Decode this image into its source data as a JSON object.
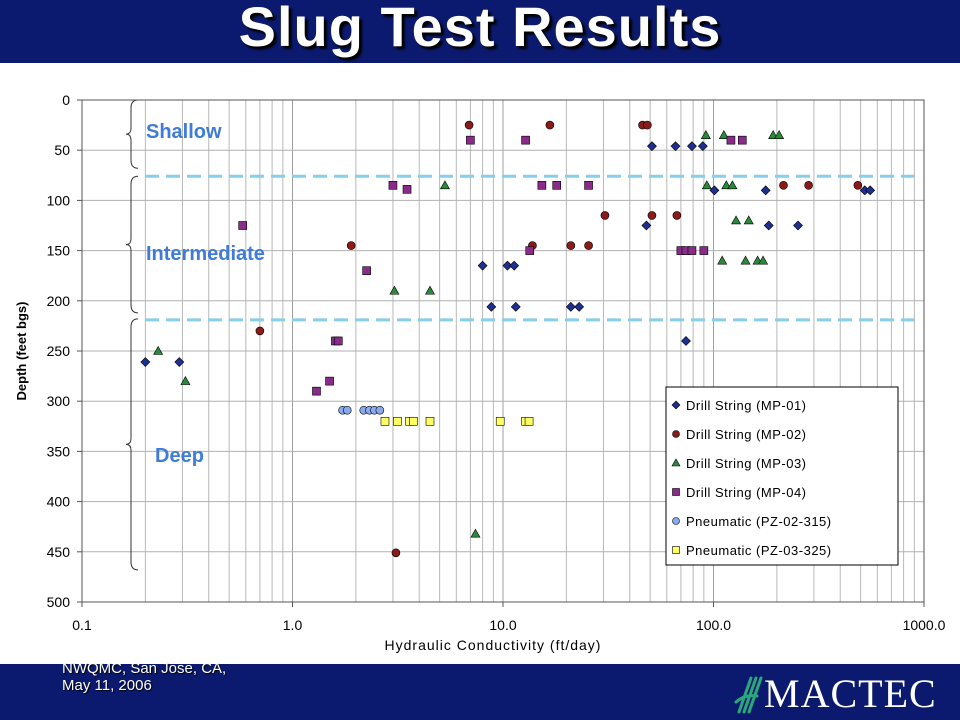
{
  "slide": {
    "title": "Slug Test Results",
    "footer_line1": "NWQMC, San Jose, CA,",
    "footer_line2": "May 11, 2006",
    "logo_text": "MACTEC",
    "colors": {
      "banner": "#0b1a6e",
      "zone_label": "#3f7bd8",
      "zone_divider": "#87ceeb"
    }
  },
  "chart_data": {
    "type": "scatter",
    "xlabel": "Hydraulic Conductivity (ft/day)",
    "ylabel": "Depth (feet bgs)",
    "x_scale": "log",
    "xlim": [
      0.1,
      1000
    ],
    "ylim": [
      0,
      500
    ],
    "y_inverted": true,
    "x_ticks": [
      0.1,
      1,
      10,
      100,
      1000
    ],
    "x_tick_labels": [
      "0.1",
      "1.0",
      "10.0",
      "100.0",
      "1000.0"
    ],
    "y_ticks": [
      0,
      50,
      100,
      150,
      200,
      250,
      300,
      350,
      400,
      450,
      500
    ],
    "grid": true,
    "legend_position": "bottom-right",
    "zones": [
      {
        "label": "Shallow",
        "range": [
          0,
          68
        ]
      },
      {
        "label": "Intermediate",
        "range": [
          76,
          212
        ]
      },
      {
        "label": "Deep",
        "range": [
          218,
          468
        ]
      }
    ],
    "zone_dividers": [
      76,
      219
    ],
    "series": [
      {
        "name": "Drill String (MP-01)",
        "marker": "diamond",
        "color": "#1f2f8f",
        "points": [
          [
            0.2,
            261
          ],
          [
            0.29,
            261
          ],
          [
            8,
            165
          ],
          [
            8.8,
            206
          ],
          [
            10.5,
            165
          ],
          [
            11.3,
            165
          ],
          [
            11.5,
            206
          ],
          [
            21,
            206
          ],
          [
            23,
            206
          ],
          [
            48,
            125
          ],
          [
            51,
            46
          ],
          [
            66,
            46
          ],
          [
            74,
            240
          ],
          [
            79,
            46
          ],
          [
            89,
            46
          ],
          [
            101,
            90
          ],
          [
            177,
            90
          ],
          [
            183,
            125
          ],
          [
            252,
            125
          ],
          [
            523,
            90
          ],
          [
            555,
            90
          ]
        ]
      },
      {
        "name": "Drill String (MP-02)",
        "marker": "circle",
        "color": "#8b1a1a",
        "points": [
          [
            0.7,
            230
          ],
          [
            1.9,
            145
          ],
          [
            3.1,
            451
          ],
          [
            6.9,
            25
          ],
          [
            13.8,
            145
          ],
          [
            16.7,
            25
          ],
          [
            21,
            145
          ],
          [
            25.5,
            145
          ],
          [
            30.5,
            115
          ],
          [
            46,
            25
          ],
          [
            48.5,
            25
          ],
          [
            51,
            115
          ],
          [
            67,
            115
          ],
          [
            215,
            85
          ],
          [
            283,
            85
          ],
          [
            485,
            85
          ]
        ]
      },
      {
        "name": "Drill String (MP-03)",
        "marker": "triangle",
        "color": "#2a8a3a",
        "points": [
          [
            0.23,
            250
          ],
          [
            0.31,
            280
          ],
          [
            3.05,
            190
          ],
          [
            4.5,
            190
          ],
          [
            5.3,
            85
          ],
          [
            7.4,
            432
          ],
          [
            92,
            35
          ],
          [
            93,
            85
          ],
          [
            110,
            160
          ],
          [
            112,
            35
          ],
          [
            115,
            85
          ],
          [
            123,
            85
          ],
          [
            128,
            120
          ],
          [
            142,
            160
          ],
          [
            147,
            120
          ],
          [
            162,
            160
          ],
          [
            172,
            160
          ],
          [
            192,
            35
          ],
          [
            205,
            35
          ]
        ]
      },
      {
        "name": "Drill String (MP-04)",
        "marker": "square",
        "color": "#8a2a8a",
        "points": [
          [
            0.58,
            125
          ],
          [
            1.3,
            290
          ],
          [
            1.5,
            280
          ],
          [
            1.6,
            240
          ],
          [
            1.65,
            240
          ],
          [
            2.25,
            170
          ],
          [
            3,
            85
          ],
          [
            3.5,
            89
          ],
          [
            7,
            40
          ],
          [
            12.8,
            40
          ],
          [
            13.4,
            150
          ],
          [
            15.3,
            85
          ],
          [
            18,
            85
          ],
          [
            25.5,
            85
          ],
          [
            70,
            150
          ],
          [
            74,
            150
          ],
          [
            79,
            150
          ],
          [
            90,
            150
          ],
          [
            121,
            40
          ],
          [
            137,
            40
          ]
        ]
      },
      {
        "name": "Pneumatic (PZ-02-315)",
        "marker": "circle",
        "color": "#88aaee",
        "points": [
          [
            1.73,
            309
          ],
          [
            1.82,
            309
          ],
          [
            2.18,
            309
          ],
          [
            2.32,
            309
          ],
          [
            2.45,
            309
          ],
          [
            2.6,
            309
          ]
        ]
      },
      {
        "name": "Pneumatic (PZ-03-325)",
        "marker": "square",
        "color": "#ffff66",
        "points": [
          [
            2.75,
            320
          ],
          [
            3.15,
            320
          ],
          [
            3.6,
            320
          ],
          [
            3.75,
            320
          ],
          [
            4.5,
            320
          ],
          [
            9.7,
            320
          ],
          [
            12.8,
            320
          ],
          [
            13.3,
            320
          ]
        ]
      }
    ]
  }
}
